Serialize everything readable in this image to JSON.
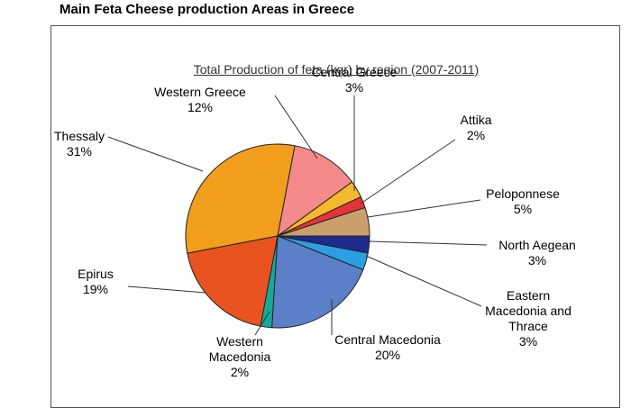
{
  "header": {
    "title": "Main Feta Cheese production Areas in Greece"
  },
  "chart_data": {
    "type": "pie",
    "title": "Total Production of feta (kgr) by region (2007-2011)",
    "categories": [
      "North Aegean",
      "Eastern Macedonia and Thrace",
      "Central Macedonia",
      "Western Macedonia",
      "Epirus",
      "Thessaly",
      "Western Greece",
      "Central Greece",
      "Attika",
      "Peloponnese"
    ],
    "values": [
      3,
      3,
      20,
      2,
      19,
      31,
      12,
      3,
      2,
      5
    ],
    "value_labels": [
      "3%",
      "3%",
      "20%",
      "2%",
      "19%",
      "31%",
      "12%",
      "3%",
      "2%",
      "5%"
    ],
    "colors": [
      "#1f2b8c",
      "#2c9fe3",
      "#5b80c8",
      "#17a898",
      "#e9531f",
      "#f09e1c",
      "#f58a8a",
      "#f5b92e",
      "#e6333a",
      "#c9a06c"
    ]
  }
}
